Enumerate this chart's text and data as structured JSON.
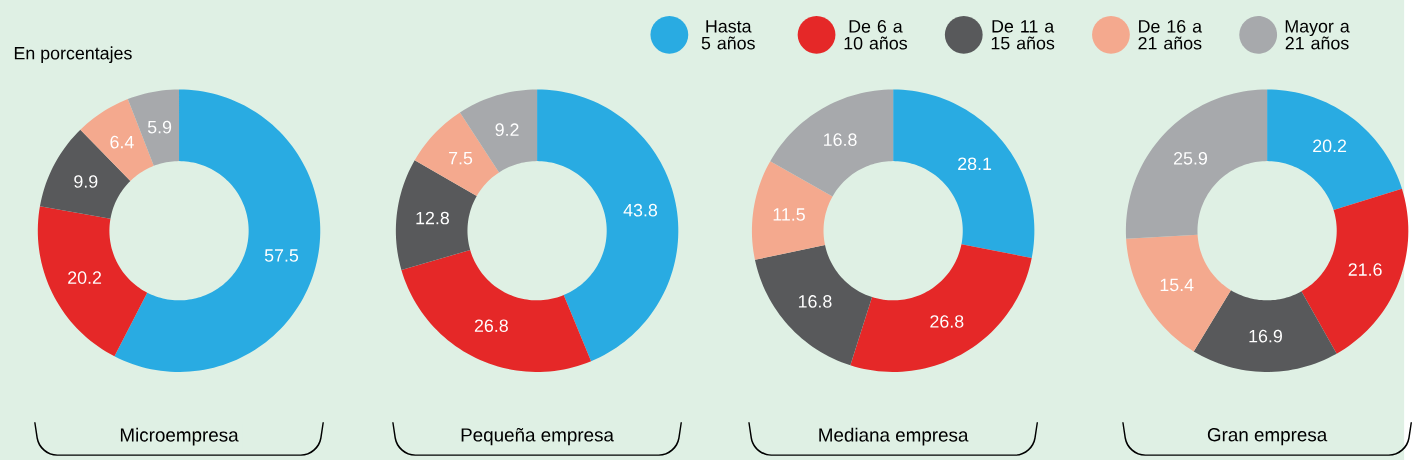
{
  "chart_data": [
    {
      "type": "donut",
      "title": "Microempresa",
      "annotations": [
        "En porcentajes"
      ],
      "categories": [
        null,
        null,
        null,
        null,
        null
      ],
      "values": [
        57.5,
        20.2,
        9.9,
        6.4,
        5.9
      ],
      "colors": [
        "#29abe2",
        "#e52828",
        "#58595b",
        "#f4a98e",
        "#a7a9ac"
      ],
      "data_labels": true
    },
    {
      "type": "donut",
      "title": "Pequeña empresa",
      "categories": [
        null,
        null,
        null,
        null,
        null
      ],
      "values": [
        43.8,
        26.8,
        12.8,
        7.5,
        9.2
      ],
      "colors": [
        "#29abe2",
        "#e52828",
        "#58595b",
        "#f4a98e",
        "#a7a9ac"
      ],
      "data_labels": true
    },
    {
      "type": "donut",
      "title": "Mediana empresa",
      "categories": [
        null,
        null,
        null,
        null,
        null
      ],
      "values": [
        28.1,
        26.8,
        16.8,
        11.5,
        16.8
      ],
      "colors": [
        "#29abe2",
        "#e52828",
        "#58595b",
        "#f4a98e",
        "#a7a9ac"
      ],
      "data_labels": true
    },
    {
      "type": "donut",
      "title": "Gran empresa",
      "categories": [
        "Hasta 5 años",
        "De 6 a 10 años",
        "De 11 a 15 años",
        "De 16 a 21 años",
        "Mayor a 21 años"
      ],
      "values": [
        20.2,
        21.6,
        16.9,
        15.4,
        25.9
      ],
      "colors": [
        "#29abe2",
        "#e52828",
        "#58595b",
        "#f4a98e",
        "#a7a9ac"
      ],
      "data_labels": true,
      "legend": "top"
    }
  ]
}
